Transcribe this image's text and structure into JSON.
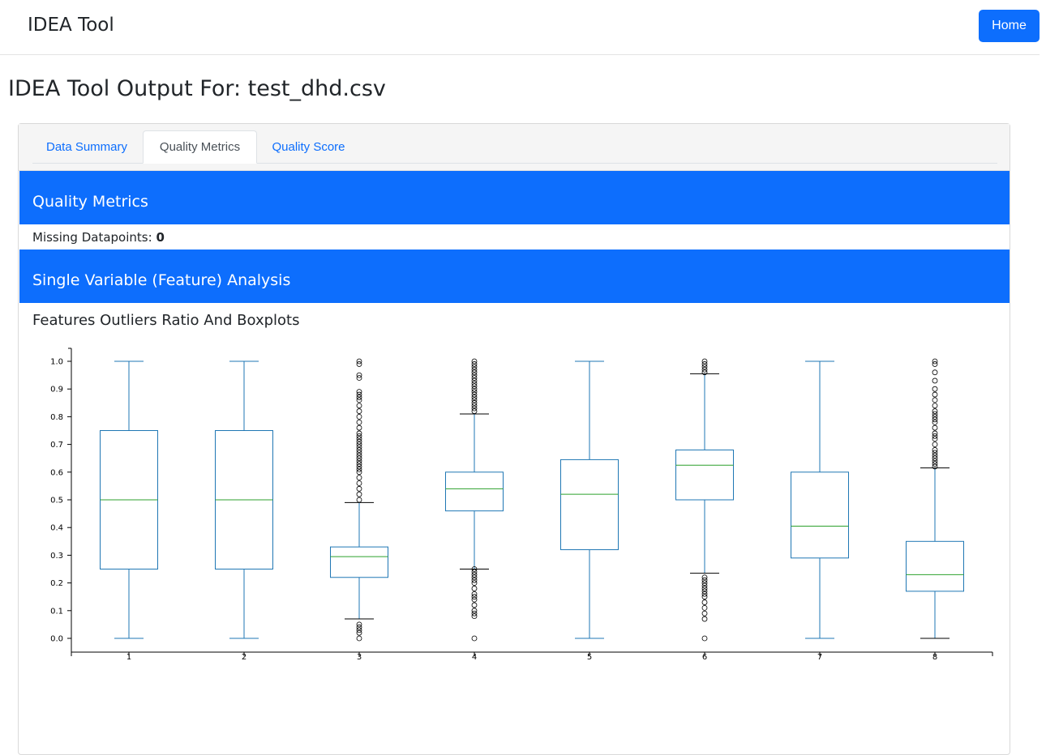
{
  "navbar": {
    "brand": "IDEA Tool",
    "home_label": "Home"
  },
  "page_title": "IDEA Tool Output For: test_dhd.csv",
  "tabs": [
    {
      "label": "Data Summary",
      "active": false
    },
    {
      "label": "Quality Metrics",
      "active": true
    },
    {
      "label": "Quality Score",
      "active": false
    }
  ],
  "quality_metrics": {
    "header": "Quality Metrics",
    "missing_label": "Missing Datapoints:",
    "missing_value": "0"
  },
  "single_variable": {
    "header": "Single Variable (Feature) Analysis",
    "subtitle": "Features Outliers Ratio And Boxplots"
  },
  "colors": {
    "primary": "#0d6efd",
    "box": "#1f77b4",
    "median": "#2ca02c",
    "outlier": "#000000"
  },
  "chart_data": {
    "type": "boxplot",
    "ylim": [
      0,
      1
    ],
    "yticks": [
      "0.0",
      "0.1",
      "0.2",
      "0.3",
      "0.4",
      "0.5",
      "0.6",
      "0.7",
      "0.8",
      "0.9",
      "1.0"
    ],
    "categories": [
      "1",
      "2",
      "3",
      "4",
      "5",
      "6",
      "7",
      "8"
    ],
    "boxes": [
      {
        "whislo": 0.0,
        "q1": 0.25,
        "med": 0.5,
        "q3": 0.75,
        "whishi": 1.0,
        "fliers": []
      },
      {
        "whislo": 0.0,
        "q1": 0.25,
        "med": 0.5,
        "q3": 0.75,
        "whishi": 1.0,
        "fliers": []
      },
      {
        "whislo": 0.07,
        "q1": 0.22,
        "med": 0.295,
        "q3": 0.33,
        "whishi": 0.49,
        "fliers": [
          0.0,
          0.02,
          0.03,
          0.04,
          0.05,
          0.5,
          0.52,
          0.54,
          0.56,
          0.58,
          0.6,
          0.61,
          0.62,
          0.63,
          0.64,
          0.65,
          0.66,
          0.67,
          0.68,
          0.69,
          0.7,
          0.71,
          0.72,
          0.73,
          0.74,
          0.76,
          0.78,
          0.8,
          0.82,
          0.84,
          0.86,
          0.87,
          0.88,
          0.89,
          0.94,
          0.95,
          0.99,
          1.0
        ]
      },
      {
        "whislo": 0.25,
        "q1": 0.46,
        "med": 0.54,
        "q3": 0.6,
        "whishi": 0.81,
        "fliers": [
          0.0,
          0.08,
          0.09,
          0.1,
          0.12,
          0.14,
          0.15,
          0.16,
          0.18,
          0.2,
          0.21,
          0.22,
          0.23,
          0.24,
          0.25,
          0.82,
          0.83,
          0.84,
          0.85,
          0.86,
          0.87,
          0.88,
          0.89,
          0.9,
          0.91,
          0.92,
          0.93,
          0.94,
          0.95,
          0.96,
          0.97,
          0.98,
          0.99,
          1.0
        ]
      },
      {
        "whislo": 0.0,
        "q1": 0.32,
        "med": 0.52,
        "q3": 0.645,
        "whishi": 1.0,
        "fliers": []
      },
      {
        "whislo": 0.235,
        "q1": 0.5,
        "med": 0.625,
        "q3": 0.68,
        "whishi": 0.955,
        "fliers": [
          0.0,
          0.07,
          0.09,
          0.11,
          0.13,
          0.15,
          0.16,
          0.17,
          0.18,
          0.19,
          0.2,
          0.21,
          0.22,
          0.96,
          0.97,
          0.98,
          0.99,
          1.0
        ]
      },
      {
        "whislo": 0.0,
        "q1": 0.29,
        "med": 0.405,
        "q3": 0.6,
        "whishi": 1.0,
        "fliers": []
      },
      {
        "whislo": 0.0,
        "q1": 0.17,
        "med": 0.23,
        "q3": 0.35,
        "whishi": 0.615,
        "fliers": [
          0.62,
          0.63,
          0.64,
          0.65,
          0.66,
          0.67,
          0.68,
          0.7,
          0.72,
          0.73,
          0.74,
          0.76,
          0.78,
          0.79,
          0.8,
          0.81,
          0.82,
          0.84,
          0.86,
          0.88,
          0.9,
          0.93,
          0.96,
          0.99,
          1.0
        ]
      }
    ]
  }
}
